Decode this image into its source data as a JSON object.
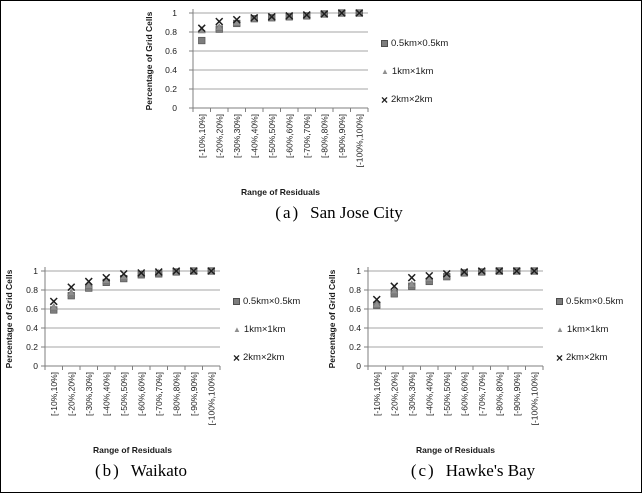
{
  "icons": {
    "square": "■",
    "triangle": "▲",
    "x": "×"
  },
  "colors": {
    "square_marker": "#7d7d7d",
    "square_edge": "#4d4d4d",
    "triangle_marker": "#8f8f8f",
    "triangle_edge": "#6e6e6e",
    "x_marker": "#1f1f1f",
    "gridline": "#a6a6a6",
    "axis": "#7f7f7f",
    "text": "#1a1a1a"
  },
  "chart_data": [
    {
      "type": "scatter",
      "caption_index": "(a)",
      "caption_title": "San Jose City",
      "xlabel": "Range of Residuals",
      "ylabel": "Percentage of Grid Cells",
      "ylim": [
        0,
        1
      ],
      "yticks": [
        "0",
        "0.2",
        "0.4",
        "0.6",
        "0.8",
        "1"
      ],
      "grid": true,
      "legend_position": "right",
      "categories": [
        "[-10%,10%]",
        "[-20%,20%]",
        "[-30%,30%]",
        "[-40%,40%]",
        "[-50%,50%]",
        "[-60%,60%]",
        "[-70%,70%]",
        "[-80%,80%]",
        "[-90%,90%]",
        "[-100%,100%]"
      ],
      "series": [
        {
          "name": "0.5km×0.5km",
          "marker": "square",
          "values": [
            0.71,
            0.83,
            0.89,
            0.94,
            0.95,
            0.96,
            0.97,
            0.99,
            1.0,
            1.0
          ]
        },
        {
          "name": "1km×1km",
          "marker": "triangle",
          "values": [
            0.82,
            0.85,
            0.9,
            0.94,
            0.95,
            0.96,
            0.97,
            0.99,
            1.0,
            1.0
          ]
        },
        {
          "name": "2km×2km",
          "marker": "x",
          "values": [
            0.84,
            0.91,
            0.93,
            0.95,
            0.96,
            0.97,
            0.98,
            0.99,
            1.0,
            1.0
          ]
        }
      ]
    },
    {
      "type": "scatter",
      "caption_index": "(b)",
      "caption_title": "Waikato",
      "xlabel": "Range of Residuals",
      "ylabel": "Percentage of Grid Cells",
      "ylim": [
        0,
        1
      ],
      "yticks": [
        "0",
        "0.2",
        "0.4",
        "0.6",
        "0.8",
        "1"
      ],
      "grid": true,
      "legend_position": "right",
      "categories": [
        "[-10%,10%]",
        "[-20%,20%]",
        "[-30%,30%]",
        "[-40%,40%]",
        "[-50%,50%]",
        "[-60%,60%]",
        "[-70%,70%]",
        "[-80%,80%]",
        "[-90%,90%]",
        "[-100%,100%]"
      ],
      "series": [
        {
          "name": "0.5km×0.5km",
          "marker": "square",
          "values": [
            0.59,
            0.74,
            0.82,
            0.88,
            0.92,
            0.96,
            0.97,
            0.99,
            1.0,
            1.0
          ]
        },
        {
          "name": "1km×1km",
          "marker": "triangle",
          "values": [
            0.62,
            0.77,
            0.85,
            0.9,
            0.94,
            0.97,
            0.98,
            0.99,
            1.0,
            1.0
          ]
        },
        {
          "name": "2km×2km",
          "marker": "x",
          "values": [
            0.68,
            0.83,
            0.89,
            0.93,
            0.97,
            0.98,
            0.99,
            1.0,
            1.0,
            1.0
          ]
        }
      ]
    },
    {
      "type": "scatter",
      "caption_index": "(c)",
      "caption_title": "Hawke's Bay",
      "xlabel": "Range of Residuals",
      "ylabel": "Percentage of Grid Cells",
      "ylim": [
        0,
        1
      ],
      "yticks": [
        "0",
        "0.2",
        "0.4",
        "0.6",
        "0.8",
        "1"
      ],
      "grid": true,
      "legend_position": "right",
      "categories": [
        "[-10%,10%]",
        "[-20%,20%]",
        "[-30%,30%]",
        "[-40%,40%]",
        "[-50%,50%]",
        "[-60%,60%]",
        "[-70%,70%]",
        "[-80%,80%]",
        "[-90%,90%]",
        "[-100%,100%]"
      ],
      "series": [
        {
          "name": "0.5km×0.5km",
          "marker": "square",
          "values": [
            0.64,
            0.76,
            0.84,
            0.89,
            0.94,
            0.98,
            0.99,
            1.0,
            1.0,
            1.0
          ]
        },
        {
          "name": "1km×1km",
          "marker": "triangle",
          "values": [
            0.65,
            0.79,
            0.86,
            0.92,
            0.95,
            0.98,
            0.99,
            1.0,
            1.0,
            1.0
          ]
        },
        {
          "name": "2km×2km",
          "marker": "x",
          "values": [
            0.7,
            0.84,
            0.93,
            0.95,
            0.97,
            0.99,
            1.0,
            1.0,
            1.0,
            1.0
          ]
        }
      ]
    }
  ]
}
